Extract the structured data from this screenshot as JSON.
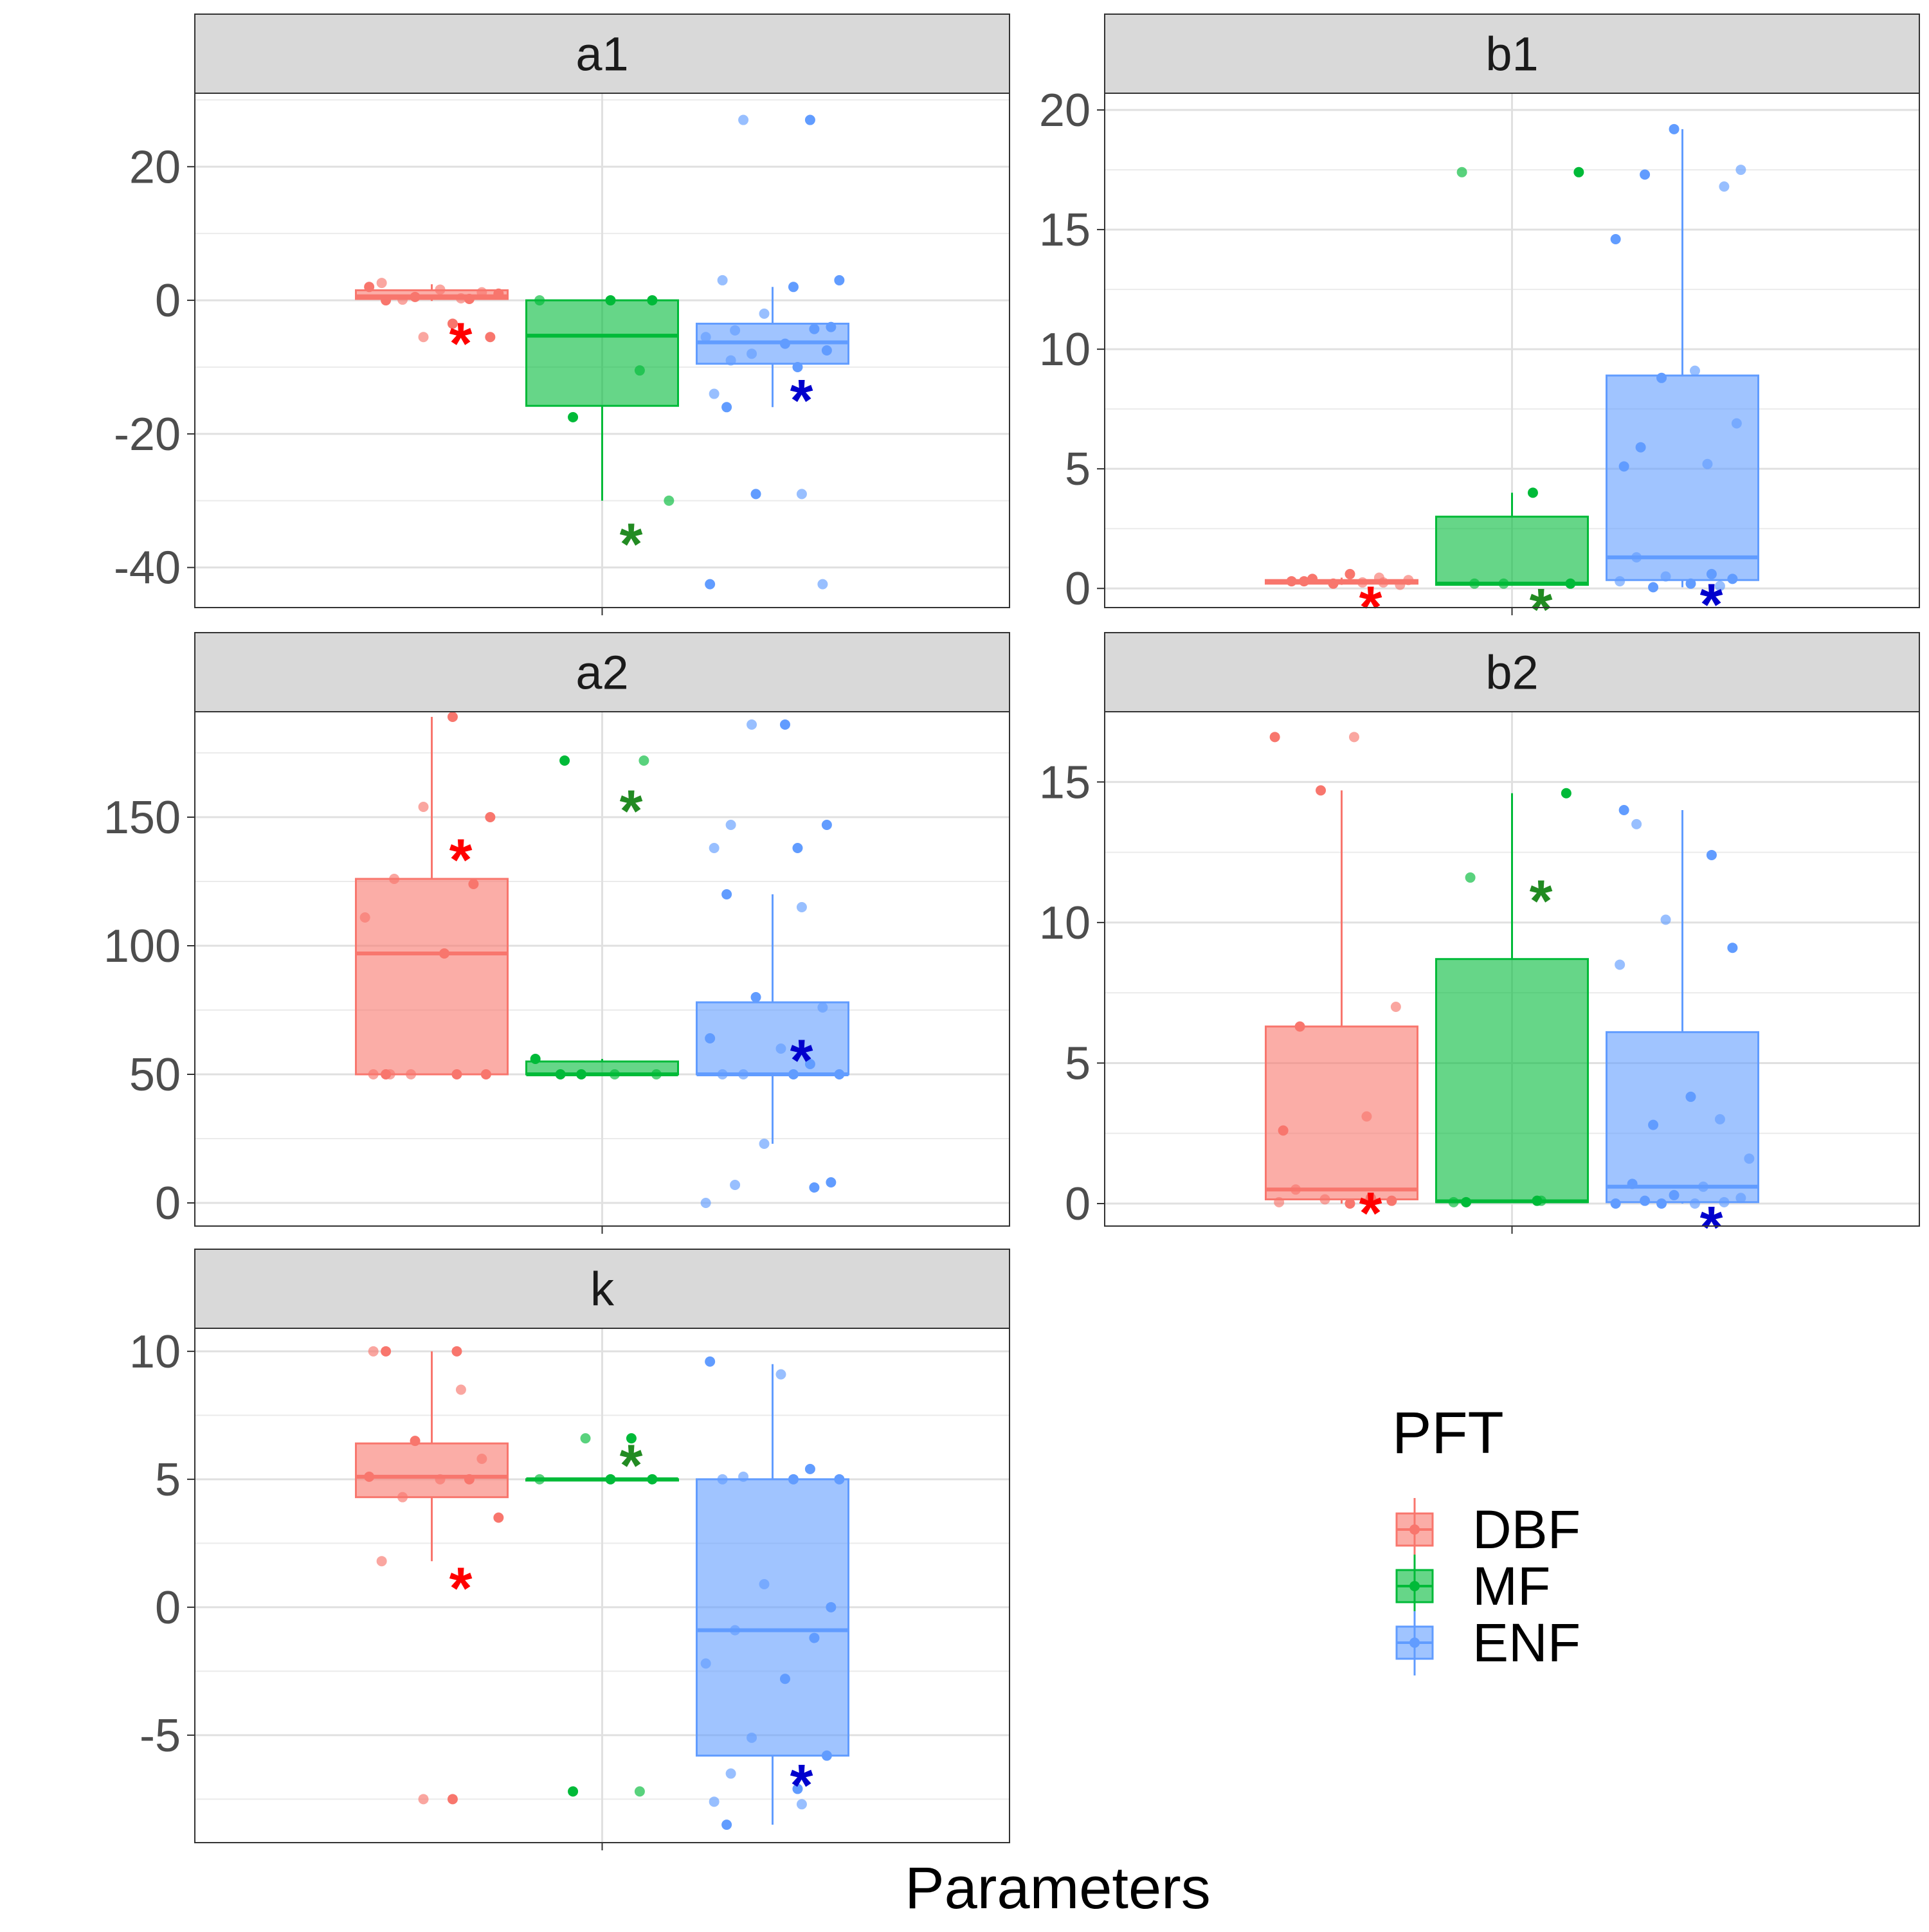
{
  "chart_data": {
    "type": "box",
    "xlabel": "Parameters",
    "legend": {
      "title": "PFT",
      "placement": "bottom-right",
      "entries": [
        {
          "name": "DBF",
          "color": "#F8766D"
        },
        {
          "name": "MF",
          "color": "#00BA38"
        },
        {
          "name": "ENF",
          "color": "#619CFF"
        }
      ]
    },
    "marker_colors": {
      "DBF": "#FF0000",
      "MF": "#228B22",
      "ENF": "#0000CD"
    },
    "panels": [
      {
        "id": "a1",
        "title": "a1",
        "ylim": [
          -46,
          31
        ],
        "yticks": [
          -40,
          -20,
          0,
          20
        ],
        "ytick_labels": [
          "-40",
          "-20",
          "0",
          "20"
        ],
        "groups": [
          {
            "name": "DBF",
            "q1": 0.2,
            "median": 0.6,
            "q3": 1.5,
            "whisker_low": -0.1,
            "whisker_high": 2.4,
            "points": [
              0,
              0.3,
              0.5,
              1.2,
              2.0,
              1.6,
              0.2,
              0.1,
              1.0,
              2.6,
              -3.5,
              -5.5,
              -5.5
            ],
            "marker": -5.5
          },
          {
            "name": "MF",
            "q1": -15.8,
            "median": -5.3,
            "q3": 0,
            "whisker_low": -30,
            "whisker_high": 0,
            "points": [
              0,
              0,
              0,
              -10.5,
              -17.5,
              -30
            ],
            "marker": -35.5
          },
          {
            "name": "ENF",
            "q1": -9.5,
            "median": -6.3,
            "q3": -3.5,
            "whisker_low": -16,
            "whisker_high": 2,
            "points": [
              27,
              27,
              3,
              3,
              2,
              -2,
              -4,
              -4.5,
              -4.3,
              -5.5,
              -6.5,
              -8,
              -7.5,
              -9,
              -10,
              -14,
              -16,
              -29,
              -29,
              -42.5,
              -42.5
            ],
            "marker": -14
          }
        ]
      },
      {
        "id": "b1",
        "title": "b1",
        "ylim": [
          -0.8,
          20.7
        ],
        "yticks": [
          0,
          5,
          10,
          15,
          20
        ],
        "ytick_labels": [
          "0",
          "5",
          "10",
          "15",
          "20"
        ],
        "groups": [
          {
            "name": "DBF",
            "q1": 0.2,
            "median": 0.28,
            "q3": 0.35,
            "whisker_low": 0.15,
            "whisker_high": 0.45,
            "points": [
              0.6,
              0.45,
              0.4,
              0.35,
              0.3,
              0.25,
              0.2,
              0.15,
              0.3,
              0.25
            ],
            "marker": -0.5
          },
          {
            "name": "MF",
            "q1": 0.15,
            "median": 0.2,
            "q3": 3.0,
            "whisker_low": 0.15,
            "whisker_high": 4.0,
            "points": [
              17.4,
              17.4,
              4.0,
              0.2,
              0.2,
              0.2
            ],
            "marker": -0.6
          },
          {
            "name": "ENF",
            "q1": 0.35,
            "median": 1.3,
            "q3": 8.9,
            "whisker_low": 0.05,
            "whisker_high": 19.2,
            "points": [
              19.2,
              17.5,
              17.3,
              16.8,
              14.6,
              9.1,
              8.8,
              6.9,
              5.9,
              5.2,
              5.1,
              1.3,
              0.6,
              0.5,
              0.4,
              0.3,
              0.2,
              0.1,
              0.05
            ],
            "marker": -0.4
          }
        ]
      },
      {
        "id": "a2",
        "title": "a2",
        "ylim": [
          -9,
          191
        ],
        "yticks": [
          0,
          50,
          100,
          150
        ],
        "ytick_labels": [
          "0",
          "50",
          "100",
          "150"
        ],
        "groups": [
          {
            "name": "DBF",
            "q1": 50,
            "median": 97,
            "q3": 126,
            "whisker_low": 50,
            "whisker_high": 189,
            "points": [
              189,
              154,
              150,
              126,
              124,
              111,
              97,
              50,
              50,
              50,
              50,
              50,
              50
            ],
            "marker": 136
          },
          {
            "name": "MF",
            "q1": 50,
            "median": 50,
            "q3": 55,
            "whisker_low": 50,
            "whisker_high": 56,
            "points": [
              172,
              172,
              56,
              50,
              50,
              50,
              50
            ],
            "marker": 155
          },
          {
            "name": "ENF",
            "q1": 50,
            "median": 50,
            "q3": 78,
            "whisker_low": 23,
            "whisker_high": 120,
            "points": [
              186,
              186,
              147,
              147,
              138,
              138,
              120,
              115,
              80,
              76,
              64,
              60,
              54,
              50,
              50,
              50,
              50,
              23,
              8,
              7,
              6,
              0
            ],
            "marker": 58
          }
        ]
      },
      {
        "id": "b2",
        "title": "b2",
        "ylim": [
          -0.8,
          17.5
        ],
        "yticks": [
          0,
          5,
          10,
          15
        ],
        "ytick_labels": [
          "0",
          "5",
          "10",
          "15"
        ],
        "groups": [
          {
            "name": "DBF",
            "q1": 0.15,
            "median": 0.5,
            "q3": 6.3,
            "whisker_low": 0,
            "whisker_high": 14.7,
            "points": [
              16.6,
              16.6,
              14.7,
              7.0,
              6.3,
              3.1,
              2.6,
              0.5,
              0.2,
              0.15,
              0.1,
              0.05,
              0
            ],
            "marker": -0.1
          },
          {
            "name": "MF",
            "q1": 0.05,
            "median": 0.08,
            "q3": 8.7,
            "whisker_low": 0.05,
            "whisker_high": 14.6,
            "points": [
              14.6,
              11.6,
              0.1,
              0.05,
              0.05,
              0.1
            ],
            "marker": 11
          },
          {
            "name": "ENF",
            "q1": 0.05,
            "median": 0.6,
            "q3": 6.1,
            "whisker_low": 0,
            "whisker_high": 14.0,
            "points": [
              14.0,
              13.5,
              12.4,
              10.1,
              9.1,
              8.5,
              3.8,
              3.0,
              2.8,
              1.6,
              0.7,
              0.6,
              0.3,
              0.2,
              0.1,
              0.05,
              0,
              0,
              0
            ],
            "marker": -0.6
          }
        ]
      },
      {
        "id": "k",
        "title": "k",
        "ylim": [
          -9.2,
          10.9
        ],
        "yticks": [
          -5,
          0,
          5,
          10
        ],
        "ytick_labels": [
          "-5",
          "0",
          "5",
          "10"
        ],
        "groups": [
          {
            "name": "DBF",
            "q1": 4.3,
            "median": 5.1,
            "q3": 6.4,
            "whisker_low": 1.8,
            "whisker_high": 10,
            "points": [
              10,
              10,
              10,
              8.5,
              6.5,
              5.8,
              5.1,
              5.0,
              5.0,
              4.3,
              3.5,
              1.8,
              -7.5,
              -7.5
            ],
            "marker": 1.0
          },
          {
            "name": "MF",
            "q1": 5.0,
            "median": 5.0,
            "q3": 5.0,
            "whisker_low": 5.0,
            "whisker_high": 5.0,
            "points": [
              6.6,
              6.6,
              5.0,
              5.0,
              5.0,
              -7.2,
              -7.2
            ],
            "marker": 5.8
          },
          {
            "name": "ENF",
            "q1": -5.8,
            "median": -0.9,
            "q3": 5.0,
            "whisker_low": -8.5,
            "whisker_high": 9.5,
            "points": [
              9.6,
              9.1,
              5.4,
              5.1,
              5.0,
              5.0,
              5.0,
              0.9,
              0.0,
              -0.9,
              -1.2,
              -2.2,
              -2.8,
              -5.1,
              -5.8,
              -6.5,
              -7.1,
              -7.6,
              -8.5,
              -7.7
            ],
            "marker": -6.7
          }
        ]
      }
    ]
  }
}
